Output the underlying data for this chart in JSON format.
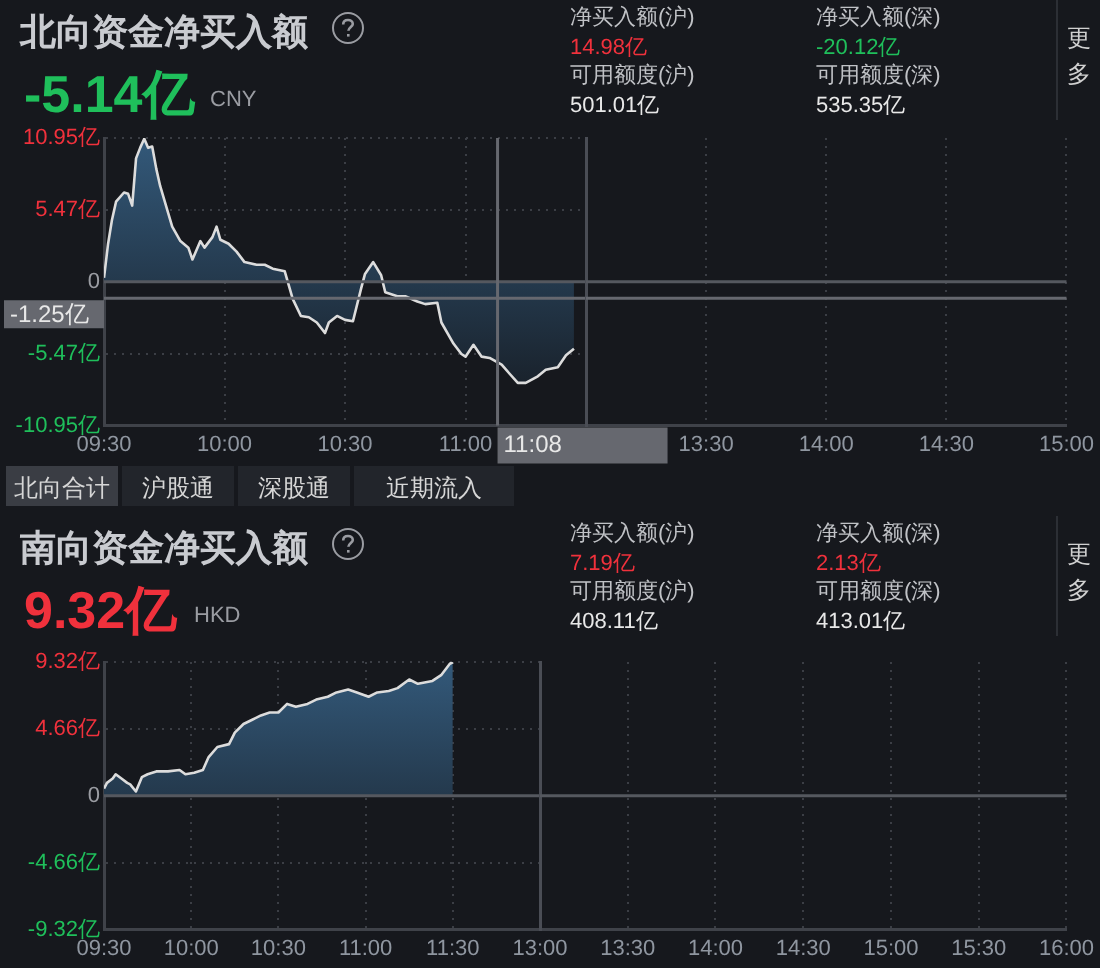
{
  "chart_data": [
    {
      "type": "area",
      "title": "北向资金净买入额",
      "annotations": [
        "-5.14亿",
        "CNY",
        "净买入额(沪)",
        "14.98亿",
        "净买入额(深)",
        "-20.12亿",
        "可用额度(沪)",
        "501.01亿",
        "可用额度(深)",
        "535.35亿",
        "更多",
        "北向合计",
        "沪股通",
        "深股通",
        "近期流入"
      ],
      "x": [
        9.5,
        9.517,
        9.533,
        9.55,
        9.583,
        9.6,
        9.617,
        9.633,
        9.65,
        9.667,
        9.683,
        9.7,
        9.717,
        9.733,
        9.767,
        9.783,
        9.817,
        9.85,
        9.867,
        9.9,
        9.917,
        9.95,
        9.967,
        9.983,
        10.017,
        10.05,
        10.083,
        10.133,
        10.167,
        10.2,
        10.25,
        10.283,
        10.317,
        10.35,
        10.383,
        10.417,
        10.433,
        10.467,
        10.5,
        10.533,
        10.567,
        10.583,
        10.617,
        10.65,
        10.667,
        10.717,
        10.75,
        10.8,
        10.833,
        10.883,
        10.9,
        10.95,
        10.983,
        11,
        11.033,
        11.067,
        11.1,
        11.15,
        11.183,
        11.217,
        11.25,
        11.3,
        11.333,
        11.383,
        11.417,
        11.45
      ],
      "series": [
        {
          "color": "#dcdcdc",
          "values": [
            0.3,
            2.9,
            4.7,
            6.1,
            6.8,
            6.7,
            5.8,
            9.4,
            10.2,
            10.9,
            10.2,
            10.3,
            8.6,
            7.3,
            5.2,
            4.2,
            3.1,
            2.6,
            1.7,
            3.1,
            2.6,
            3.4,
            4.2,
            3.2,
            2.9,
            2.3,
            1.5,
            1.3,
            1.3,
            1.0,
            0.8,
            -1.3,
            -2.6,
            -2.7,
            -3.1,
            -3.9,
            -3.1,
            -2.6,
            -2.9,
            -3.0,
            -0.5,
            0.6,
            1.5,
            0.5,
            -0.8,
            -1.1,
            -1.1,
            -1.5,
            -1.7,
            -1.6,
            -3.1,
            -4.7,
            -5.5,
            -5.7,
            -4.8,
            -5.7,
            -5.8,
            -6.3,
            -7.0,
            -7.7,
            -7.7,
            -7.2,
            -6.7,
            -6.5,
            -5.6,
            -5.1
          ]
        }
      ],
      "xlim": [
        9.5,
        11.5
      ],
      "xticks": [
        {
          "value": 9.5,
          "label": "09:30"
        },
        {
          "value": 10,
          "label": "10:00"
        },
        {
          "value": 10.5,
          "label": "10:30"
        },
        {
          "value": 11,
          "label": "11:00"
        }
      ],
      "ylim": [
        -10.95,
        10.95
      ],
      "yticks": [
        {
          "value": -10.95,
          "label": "-10.95亿"
        },
        {
          "value": -5.47,
          "label": "-5.47亿"
        },
        {
          "value": 0,
          "label": "0"
        },
        {
          "value": 5.47,
          "label": "5.47亿"
        },
        {
          "value": 10.95,
          "label": "10.95亿"
        }
      ],
      "grid": true,
      "ref_lines": [
        {
          "axis": "y",
          "value": 0,
          "color": "#55585f"
        },
        {
          "axis": "y",
          "value": -1.25,
          "label": "-1.25亿",
          "color": "#66686f"
        },
        {
          "axis": "x",
          "value": 11.133,
          "label": "11:08",
          "color": "#66686f"
        }
      ]
    },
    {
      "type": "area",
      "xlim": [
        13,
        15
      ],
      "xticks": [
        {
          "value": 13,
          "label": null
        },
        {
          "value": 13.5,
          "label": "13:30"
        },
        {
          "value": 14,
          "label": "14:00"
        },
        {
          "value": 14.5,
          "label": "14:30"
        },
        {
          "value": 15,
          "label": "15:00"
        }
      ],
      "ylim": [
        -10.95,
        10.95
      ],
      "yticks": [
        {
          "value": -10.95,
          "label": null
        },
        {
          "value": -5.47,
          "label": null
        },
        {
          "value": 0,
          "label": null
        },
        {
          "value": 5.47,
          "label": null
        },
        {
          "value": 10.95,
          "label": null
        }
      ],
      "tick_labels": "x",
      "grid": true,
      "ref_lines": [
        {
          "axis": "y",
          "value": 0,
          "color": "#55585f"
        },
        {
          "axis": "y",
          "value": -1.25,
          "color": "#66686f"
        }
      ]
    },
    {
      "type": "area",
      "title": "南向资金净买入额",
      "annotations": [
        "9.32亿",
        "HKD",
        "净买入额(沪)",
        "7.19亿",
        "净买入额(深)",
        "2.13亿",
        "可用额度(沪)",
        "408.11亿",
        "可用额度(深)",
        "413.01亿",
        "更多"
      ],
      "x": [
        9.5,
        9.517,
        9.55,
        9.567,
        9.6,
        9.633,
        9.65,
        9.683,
        9.717,
        9.75,
        9.8,
        9.867,
        9.933,
        9.967,
        10.017,
        10.067,
        10.1,
        10.15,
        10.217,
        10.25,
        10.3,
        10.35,
        10.4,
        10.45,
        10.5,
        10.55,
        10.6,
        10.667,
        10.717,
        10.783,
        10.833,
        10.9,
        10.95,
        11.017,
        11.067,
        11.133,
        11.183,
        11.25,
        11.3,
        11.383,
        11.433,
        11.483,
        11.5
      ],
      "series": [
        {
          "color": "#dcdcdc",
          "values": [
            0.5,
            0.9,
            1.2,
            1.5,
            1.2,
            0.9,
            0.8,
            0.3,
            1.3,
            1.5,
            1.7,
            1.7,
            1.8,
            1.5,
            1.6,
            1.8,
            2.7,
            3.4,
            3.6,
            4.4,
            5.0,
            5.3,
            5.6,
            5.8,
            5.8,
            6.4,
            6.2,
            6.4,
            6.7,
            6.9,
            7.2,
            7.4,
            7.2,
            6.9,
            7.2,
            7.3,
            7.5,
            8.1,
            7.8,
            8.0,
            8.4,
            9.2,
            9.3
          ]
        }
      ],
      "xlim": [
        9.5,
        12
      ],
      "xticks": [
        {
          "value": 9.5,
          "label": "09:30"
        },
        {
          "value": 10,
          "label": "10:00"
        },
        {
          "value": 10.5,
          "label": "10:30"
        },
        {
          "value": 11,
          "label": "11:00"
        },
        {
          "value": 11.5,
          "label": "11:30"
        }
      ],
      "ylim": [
        -9.32,
        9.32
      ],
      "yticks": [
        {
          "value": -9.32,
          "label": "-9.32亿"
        },
        {
          "value": -4.66,
          "label": "-4.66亿"
        },
        {
          "value": 0,
          "label": "0"
        },
        {
          "value": 4.66,
          "label": "4.66亿"
        },
        {
          "value": 9.32,
          "label": "9.32亿"
        }
      ],
      "grid": true,
      "ref_lines": [
        {
          "axis": "y",
          "value": 0,
          "color": "#55585f"
        }
      ]
    },
    {
      "type": "area",
      "xlim": [
        13,
        16
      ],
      "xticks": [
        {
          "value": 13,
          "label": "13:00"
        },
        {
          "value": 13.5,
          "label": "13:30"
        },
        {
          "value": 14,
          "label": "14:00"
        },
        {
          "value": 14.5,
          "label": "14:30"
        },
        {
          "value": 15,
          "label": "15:00"
        },
        {
          "value": 15.5,
          "label": "15:30"
        },
        {
          "value": 16,
          "label": "16:00"
        }
      ],
      "ylim": [
        -9.32,
        9.32
      ],
      "yticks": [
        {
          "value": -9.32,
          "label": null
        },
        {
          "value": -4.66,
          "label": null
        },
        {
          "value": 0,
          "label": null
        },
        {
          "value": 4.66,
          "label": null
        },
        {
          "value": 9.32,
          "label": null
        }
      ],
      "tick_labels": "x",
      "grid": true,
      "ref_lines": [
        {
          "axis": "y",
          "value": 0,
          "color": "#55585f"
        }
      ]
    }
  ]
}
